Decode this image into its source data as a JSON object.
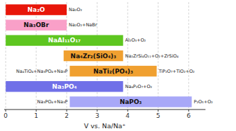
{
  "chart_data": {
    "type": "bar",
    "orientation": "horizontal",
    "categories": [
      "Na₂O",
      "Na₃OBr",
      "NaAl₁₁O₁₇",
      "Na₄Zr₂(SiO₄)₃",
      "NaTi₂(PO₄)₃",
      "Na₃PO₄",
      "NaPO₃"
    ],
    "starts": [
      0.0,
      0.0,
      0.0,
      1.9,
      2.1,
      0.0,
      2.1
    ],
    "values": [
      2.0,
      2.0,
      3.85,
      3.85,
      4.95,
      3.85,
      6.1
    ],
    "right_labels": [
      "Na₂O₂",
      "Na₂O₂+NaBr",
      "Al₂O₃+O₂",
      "Na₂ZrSi₄O₁₁+O₂+ZrSiO₄",
      "TiP₂O₇+TiO₂+O₂",
      "Na₄P₂O₇+O₂",
      "P₂O₅+O₂"
    ],
    "left_labels": [
      null,
      null,
      null,
      null,
      "Na₄TiO₄+Na₃PO₄+Na₃P",
      null,
      "Na₃PO₄+Na₃P"
    ],
    "colors": [
      "#e8160a",
      "#f9a0c8",
      "#5ec620",
      "#f0a030",
      "#f0a030",
      "#7070e8",
      "#a8a8f8"
    ],
    "xlabel": "V vs. Na/Na⁺",
    "xlim": [
      -0.05,
      6.55
    ],
    "xticks": [
      0,
      1,
      2,
      3,
      4,
      5,
      6
    ],
    "grid": true,
    "tick_labels": "x"
  }
}
